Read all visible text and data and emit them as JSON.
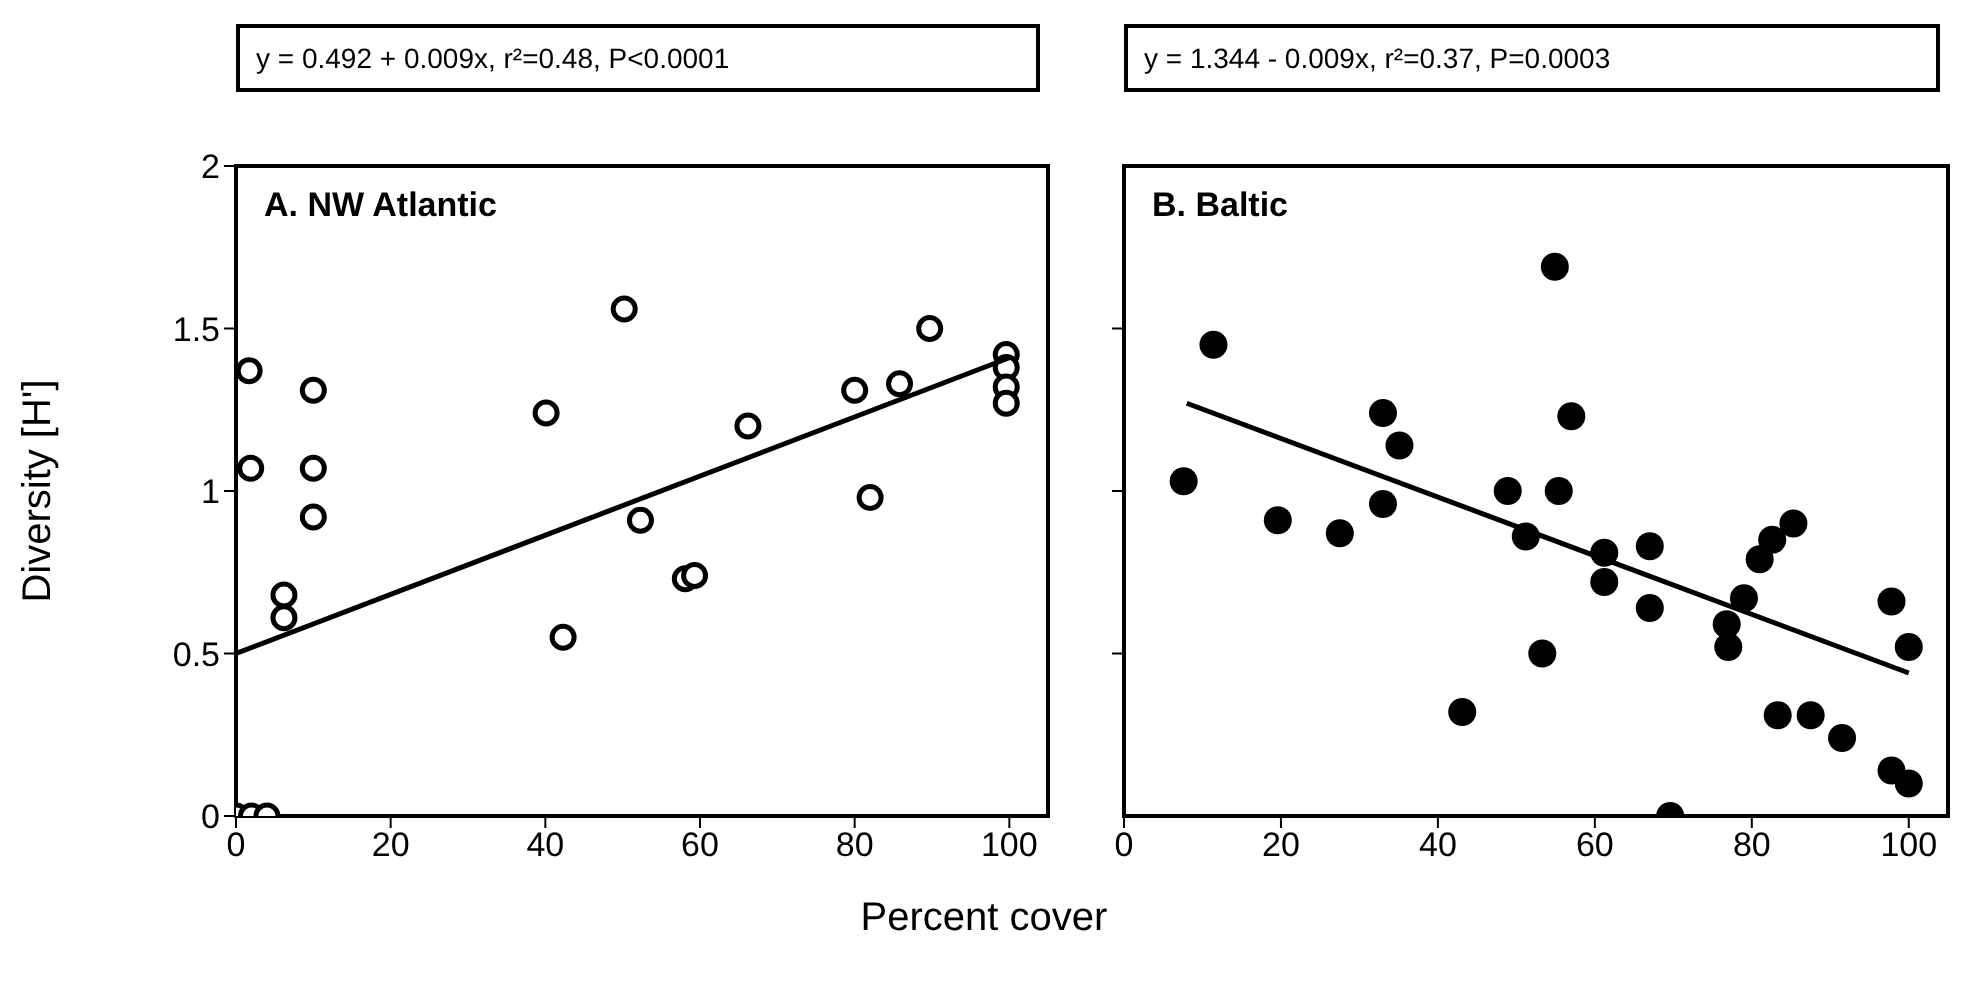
{
  "chart_data": [
    {
      "type": "scatter",
      "title": "A. NW Atlantic",
      "ylabel": "Diversity [H']",
      "xlabel": "Percent cover",
      "annotations": [
        "y = 0.492 + 0.009x, r²=0.48, P<0.0001"
      ],
      "xlim": [
        0,
        105
      ],
      "xticks": [
        0,
        20,
        40,
        60,
        80,
        100
      ],
      "ylim": [
        0,
        2
      ],
      "yticks": [
        0,
        0.5,
        1,
        1.5,
        2
      ],
      "series": [
        {
          "color": "#000000",
          "marker": "circle",
          "x": [
            1.7,
            1.9,
            0,
            2,
            4,
            10,
            10,
            10,
            6.2,
            6.2,
            40.1,
            42.3,
            50.2,
            52.3,
            58.1,
            59.3,
            66.2,
            80,
            82,
            85.8,
            89.7,
            99.6,
            99.6,
            99.6,
            99.6
          ],
          "values": [
            1.37,
            1.07,
            0,
            0,
            0,
            1.31,
            1.07,
            0.92,
            0.68,
            0.61,
            1.24,
            0.55,
            1.56,
            0.91,
            0.73,
            0.74,
            1.2,
            1.31,
            0.98,
            1.33,
            1.5,
            1.42,
            1.38,
            1.32,
            1.27
          ]
        },
        {
          "type": "line",
          "color": "#000000",
          "x": [
            0,
            100
          ],
          "values": [
            0.5,
            1.41
          ]
        }
      ]
    },
    {
      "type": "scatter",
      "title": "B. Baltic",
      "annotations": [
        "y = 1.344 - 0.009x, r²=0.37, P=0.0003"
      ],
      "xlim": [
        0,
        105
      ],
      "xticks": [
        0,
        20,
        40,
        60,
        80,
        100
      ],
      "ylim": [
        0,
        2
      ],
      "yticks": [
        {
          "value": 0.5,
          "label": null
        },
        {
          "value": 1,
          "label": null
        },
        {
          "value": 1.5,
          "label": null
        }
      ],
      "tick_labels": "x",
      "series": [
        {
          "color": "#000000",
          "marker": "circle",
          "x": [
            7.6,
            11.4,
            19.6,
            27.5,
            33,
            35.1,
            33,
            43.1,
            48.9,
            51.2,
            53.3,
            54.9,
            55.4,
            57,
            61.2,
            61.2,
            67,
            67,
            69.6,
            76.8,
            77,
            79,
            81,
            82.6,
            85.3,
            83.3,
            87.5,
            91.5,
            97.8,
            100,
            97.8,
            100
          ],
          "values": [
            1.03,
            1.45,
            0.91,
            0.87,
            1.24,
            1.14,
            0.96,
            0.32,
            1.0,
            0.86,
            0.5,
            1.69,
            1.0,
            1.23,
            0.81,
            0.72,
            0.83,
            0.64,
            0,
            0.59,
            0.52,
            0.67,
            0.79,
            0.85,
            0.9,
            0.31,
            0.31,
            0.24,
            0.66,
            0.52,
            0.14,
            0.1
          ]
        },
        {
          "type": "line",
          "color": "#000000",
          "x": [
            8,
            100
          ],
          "values": [
            1.27,
            0.44
          ]
        }
      ]
    }
  ]
}
